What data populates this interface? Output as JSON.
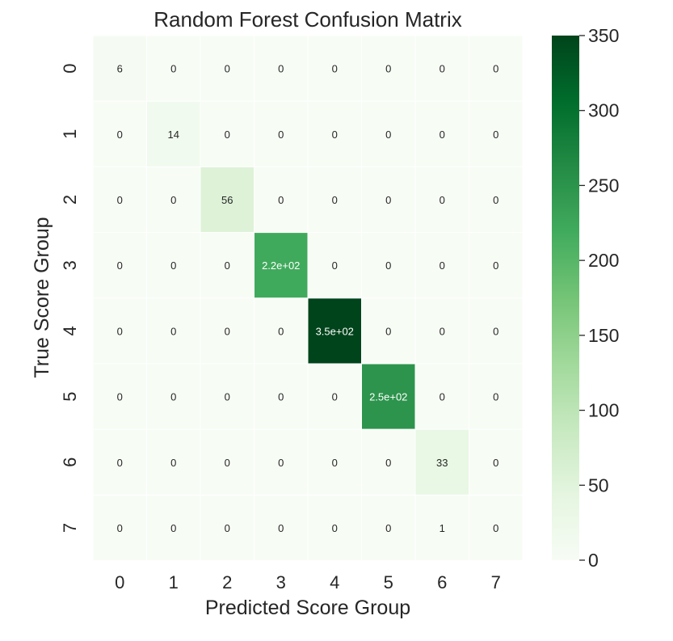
{
  "chart_data": {
    "type": "heatmap",
    "title": "Random Forest Confusion Matrix",
    "xlabel": "Predicted Score Group",
    "ylabel": "True Score Group",
    "x_categories": [
      "0",
      "1",
      "2",
      "3",
      "4",
      "5",
      "6",
      "7"
    ],
    "y_categories": [
      "0",
      "1",
      "2",
      "3",
      "4",
      "5",
      "6",
      "7"
    ],
    "values": [
      [
        6,
        0,
        0,
        0,
        0,
        0,
        0,
        0
      ],
      [
        0,
        14,
        0,
        0,
        0,
        0,
        0,
        0
      ],
      [
        0,
        0,
        56,
        0,
        0,
        0,
        0,
        0
      ],
      [
        0,
        0,
        0,
        220,
        0,
        0,
        0,
        0
      ],
      [
        0,
        0,
        0,
        0,
        350,
        0,
        0,
        0
      ],
      [
        0,
        0,
        0,
        0,
        0,
        250,
        0,
        0
      ],
      [
        0,
        0,
        0,
        0,
        0,
        0,
        33,
        0
      ],
      [
        0,
        0,
        0,
        0,
        0,
        0,
        1,
        0
      ]
    ],
    "cell_labels": [
      [
        "6",
        "0",
        "0",
        "0",
        "0",
        "0",
        "0",
        "0"
      ],
      [
        "0",
        "14",
        "0",
        "0",
        "0",
        "0",
        "0",
        "0"
      ],
      [
        "0",
        "0",
        "56",
        "0",
        "0",
        "0",
        "0",
        "0"
      ],
      [
        "0",
        "0",
        "0",
        "2.2e+02",
        "0",
        "0",
        "0",
        "0"
      ],
      [
        "0",
        "0",
        "0",
        "0",
        "3.5e+02",
        "0",
        "0",
        "0"
      ],
      [
        "0",
        "0",
        "0",
        "0",
        "0",
        "2.5e+02",
        "0",
        "0"
      ],
      [
        "0",
        "0",
        "0",
        "0",
        "0",
        "0",
        "33",
        "0"
      ],
      [
        "0",
        "0",
        "0",
        "0",
        "0",
        "0",
        "1",
        "0"
      ]
    ],
    "colorbar": {
      "range": [
        0,
        350
      ],
      "ticks": [
        0,
        50,
        100,
        150,
        200,
        250,
        300,
        350
      ],
      "colormap": [
        "#f7fcf5",
        "#e5f5e0",
        "#c7e9c0",
        "#a1d99b",
        "#74c476",
        "#41ab5d",
        "#238b45",
        "#006d2c",
        "#00441b"
      ]
    },
    "grid_line_color": "#ffffff"
  }
}
